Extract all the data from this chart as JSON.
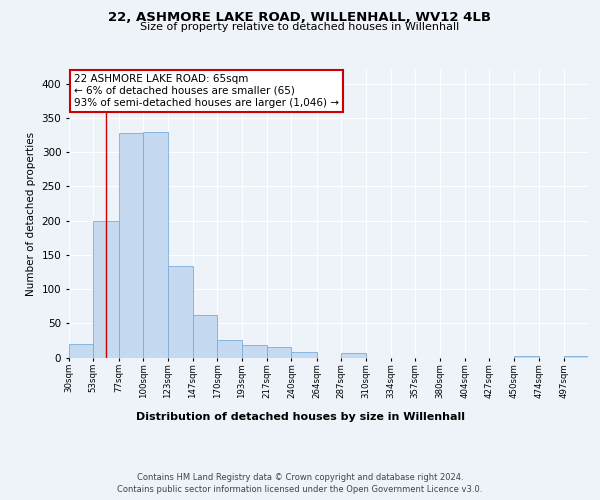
{
  "title": "22, ASHMORE LAKE ROAD, WILLENHALL, WV12 4LB",
  "subtitle": "Size of property relative to detached houses in Willenhall",
  "xlabel": "Distribution of detached houses by size in Willenhall",
  "ylabel": "Number of detached properties",
  "bin_labels": [
    "30sqm",
    "53sqm",
    "77sqm",
    "100sqm",
    "123sqm",
    "147sqm",
    "170sqm",
    "193sqm",
    "217sqm",
    "240sqm",
    "264sqm",
    "287sqm",
    "310sqm",
    "334sqm",
    "357sqm",
    "380sqm",
    "404sqm",
    "427sqm",
    "450sqm",
    "474sqm",
    "497sqm"
  ],
  "bar_values": [
    20,
    200,
    328,
    330,
    133,
    62,
    25,
    18,
    16,
    8,
    0,
    7,
    0,
    0,
    0,
    0,
    0,
    0,
    2,
    0,
    2
  ],
  "bar_color": "#c5d9f1",
  "bar_edge_color": "#7aadda",
  "property_line_x": 65,
  "property_line_color": "#cc0000",
  "ylim": [
    0,
    420
  ],
  "yticks": [
    0,
    50,
    100,
    150,
    200,
    250,
    300,
    350,
    400
  ],
  "annotation_text": "22 ASHMORE LAKE ROAD: 65sqm\n← 6% of detached houses are smaller (65)\n93% of semi-detached houses are larger (1,046) →",
  "annotation_box_color": "#ffffff",
  "annotation_box_edge": "#cc0000",
  "footer_line1": "Contains HM Land Registry data © Crown copyright and database right 2024.",
  "footer_line2": "Contains public sector information licensed under the Open Government Licence v3.0.",
  "background_color": "#eef2f9",
  "grid_color": "#ffffff",
  "bin_edges": [
    30,
    53,
    77,
    100,
    123,
    147,
    170,
    193,
    217,
    240,
    264,
    287,
    310,
    334,
    357,
    380,
    404,
    427,
    450,
    474,
    497,
    520
  ]
}
